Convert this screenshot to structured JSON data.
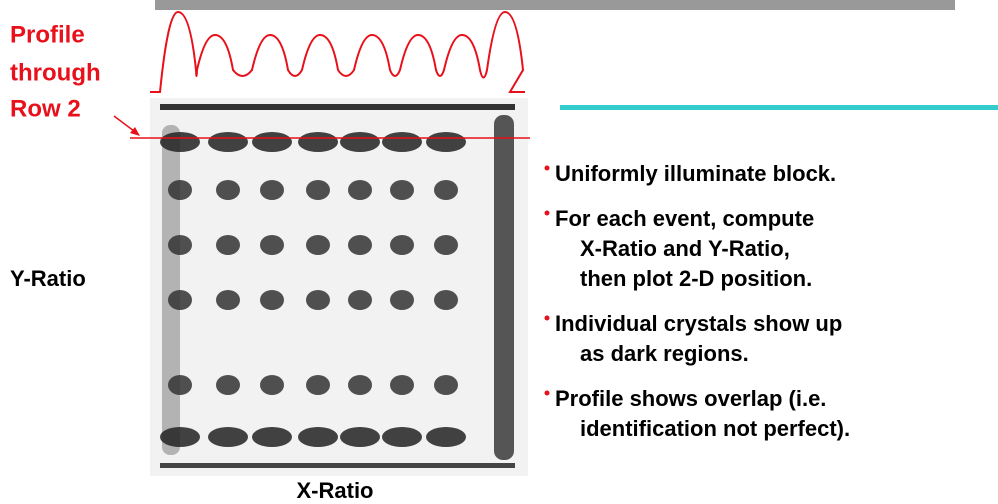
{
  "profile_label": [
    "Profile",
    "through",
    "Row 2"
  ],
  "y_axis_label": "Y-Ratio",
  "x_axis_label": "X-Ratio",
  "bullets": [
    {
      "lines": [
        "Uniformly illuminate block."
      ]
    },
    {
      "lines": [
        "For each event, compute",
        "X-Ratio and Y-Ratio,",
        "then plot 2-D position."
      ]
    },
    {
      "lines": [
        "Individual crystals show up",
        "as dark regions."
      ]
    },
    {
      "lines": [
        "Profile shows overlap (i.e.",
        "identification not perfect)."
      ]
    }
  ]
}
